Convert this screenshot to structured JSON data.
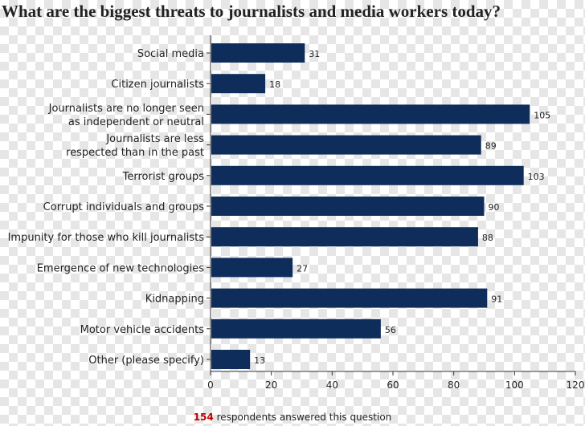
{
  "chart_data": {
    "type": "bar",
    "orientation": "horizontal",
    "title": "What are the biggest threats to journalists and media workers today?",
    "categories": [
      [
        "Social media"
      ],
      [
        "Citizen journalists"
      ],
      [
        "Journalists are no longer seen",
        "as independent or neutral"
      ],
      [
        "Journalists are less",
        "respected than in the past"
      ],
      [
        "Terrorist groups"
      ],
      [
        "Corrupt individuals and groups"
      ],
      [
        "Impunity for those who kill journalists"
      ],
      [
        "Emergence of new technologies"
      ],
      [
        "Kidnapping"
      ],
      [
        "Motor vehicle accidents"
      ],
      [
        "Other (please specify)"
      ]
    ],
    "values": [
      31,
      18,
      105,
      89,
      103,
      90,
      88,
      27,
      91,
      56,
      13
    ],
    "xlim": [
      0,
      120
    ],
    "xticks": [
      0,
      20,
      40,
      60,
      80,
      100,
      120
    ],
    "bar_color": "#0f2d5b",
    "grid": false
  },
  "footer": {
    "count": "154",
    "text": "respondents answered this question"
  }
}
